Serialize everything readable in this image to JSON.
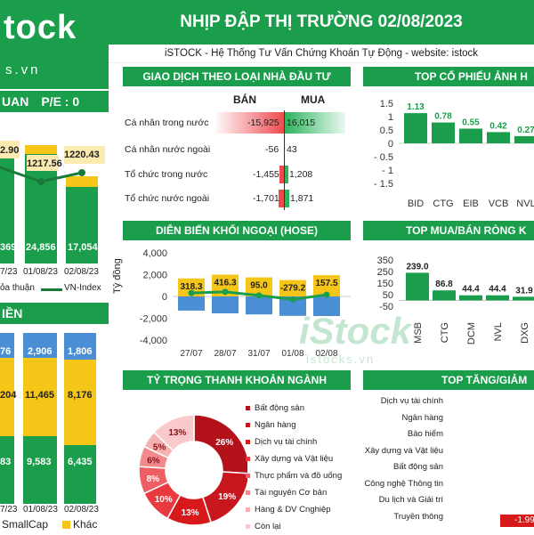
{
  "header": {
    "title": "NHỊP ĐẬP THỊ TRƯỜNG 02/08/2023",
    "subtitle": "iSTOCK - Hệ Thống Tư Vấn Chứng Khoán Tự Động - website: istock",
    "logo_text": "tock",
    "logo_sub": "s.vn",
    "colors": {
      "green": "#1a9e4c",
      "yellow": "#f5c518",
      "red": "#d7191c"
    }
  },
  "left_panel_1": {
    "title_fragment": "UAN",
    "pe": "P/E : 0",
    "top_values": [
      "2.90",
      "1217.56",
      "1220.43"
    ],
    "bar_values": [
      "369",
      "24,856",
      "17,054"
    ],
    "dates": [
      "7/23",
      "01/08/23",
      "02/08/23"
    ],
    "legend_1": "ỏa thuận",
    "legend_2": "VN-Index"
  },
  "left_panel_2": {
    "title_fragment": "IỀN",
    "row_top": [
      "76",
      "2,906",
      "1,806"
    ],
    "row_mid": [
      "204",
      "11,465",
      "8,176"
    ],
    "row_bot": [
      "83",
      "9,583",
      "6,435"
    ],
    "dates": [
      "7/23",
      "01/08/23",
      "02/08/23"
    ],
    "legend_smallcap": "SmallCap",
    "legend_khac": "Khác"
  },
  "investor": {
    "title": "GIAO DỊCH THEO LOẠI NHÀ ĐẦU TƯ",
    "col_sell": "BÁN",
    "col_buy": "MUA",
    "rows": [
      {
        "label": "Cá nhân trong nước",
        "sell": "-15,925",
        "buy": "16,015"
      },
      {
        "label": "Cá nhân nước ngoài",
        "sell": "-56",
        "buy": "43"
      },
      {
        "label": "Tổ chức trong nước",
        "sell": "-1,455",
        "buy": "1,208"
      },
      {
        "label": "Tổ chức nước ngoài",
        "sell": "-1,701",
        "buy": "1,871"
      }
    ]
  },
  "top_impact": {
    "title": "TOP CỔ PHIẾU ẢNH H",
    "chart_data": {
      "type": "bar",
      "categories": [
        "BID",
        "CTG",
        "EIB",
        "VCB",
        "NVL"
      ],
      "values": [
        1.13,
        0.78,
        0.55,
        0.42,
        0.27
      ],
      "value_labels": [
        "1.13",
        "0.78",
        "0.55",
        "0.42",
        "0.27"
      ],
      "ylim": [
        -1.5,
        1.5
      ],
      "ytick_labels": [
        "1.5",
        "1",
        "0.5",
        "0",
        "- 0.5",
        "- 1",
        "- 1.5"
      ]
    }
  },
  "foreign_flow": {
    "title": "DIỄN BIẾN KHỐI NGOẠI (HOSE)",
    "ylabel": "Tỷ đồng",
    "chart_data": {
      "type": "bar",
      "categories": [
        "27/07",
        "28/07",
        "31/07",
        "01/08",
        "02/08"
      ],
      "net_labels": [
        "318.3",
        "416.3",
        "95.0",
        "-279.2",
        "157.5"
      ],
      "buy": [
        1650,
        2000,
        1750,
        1500,
        1950
      ],
      "sell": [
        -1300,
        -1550,
        -1650,
        -1780,
        -1800
      ],
      "net": [
        318.3,
        416.3,
        95.0,
        -279.2,
        157.5
      ],
      "ylim": [
        -4000,
        4000
      ],
      "ytick_labels": [
        "4,000",
        "2,000",
        "0",
        "-2,000",
        "-4,000"
      ]
    }
  },
  "top_net": {
    "title": "TOP MUA/BÁN RÒNG K",
    "chart_data": {
      "type": "bar",
      "categories": [
        "MSB",
        "CTG",
        "DCM",
        "NVL",
        "DXG"
      ],
      "values": [
        239.0,
        86.8,
        44.4,
        44.4,
        31.9
      ],
      "value_labels": [
        "239.0",
        "86.8",
        "44.4",
        "44.4",
        "31.9"
      ],
      "ylim": [
        -50,
        350
      ],
      "ytick_labels": [
        "350",
        "250",
        "150",
        "50",
        "-50"
      ]
    }
  },
  "sector_share": {
    "title": "TỶ TRỌNG THANH KHOẢN NGÀNH",
    "chart_data": {
      "type": "pie",
      "labels": [
        "Bất động sản",
        "Ngân hàng",
        "Dịch vụ tài chính",
        "Xây dựng và Vật liệu",
        "Thực phẩm và đồ uống",
        "Tài nguyên Cơ bản",
        "Hàng & DV Cnghiệp",
        "Còn lại"
      ],
      "values": [
        26,
        19,
        13,
        10,
        8,
        6,
        5,
        13
      ],
      "value_labels": [
        "26%",
        "19%",
        "13%",
        "10%",
        "8%",
        "6%",
        "5%",
        "13%"
      ],
      "colors": [
        "#b3121a",
        "#c8161f",
        "#d7191c",
        "#e83a3f",
        "#ee5f63",
        "#f28a8d",
        "#f6b1b3",
        "#f9c9cb"
      ]
    }
  },
  "top_change": {
    "title": "TOP TĂNG/GIẢM",
    "sectors": [
      "Dịch vụ tài chính",
      "Ngân hàng",
      "Bảo hiểm",
      "Xây dựng và Vật liệu",
      "Bất động sản",
      "Công nghệ Thông tin",
      "Du lịch và Giải trí",
      "Truyền thông"
    ],
    "last_value": "-1.99"
  },
  "watermark": {
    "big": "iStock",
    "small": "istocks.vn"
  }
}
